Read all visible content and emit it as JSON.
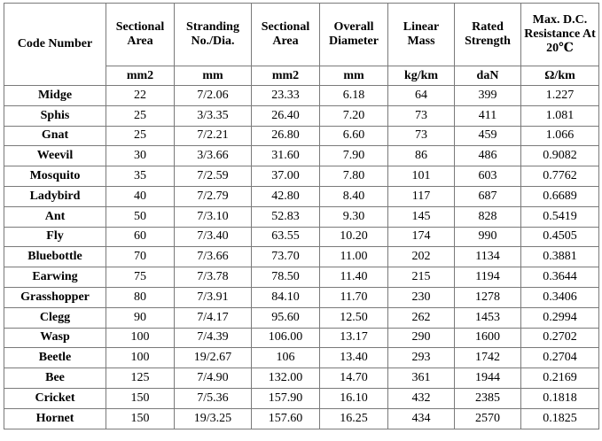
{
  "table": {
    "headers": [
      "Code Number",
      "Sectional Area",
      "Stranding No./Dia.",
      "Sectional Area",
      "Overall Diameter",
      "Linear Mass",
      "Rated Strength",
      "Max. D.C. Resistance At 20℃"
    ],
    "units": [
      "mm2",
      "mm",
      "mm2",
      "mm",
      "kg/km",
      "daN",
      "Ω/km"
    ],
    "rows": [
      [
        "Midge",
        "22",
        "7/2.06",
        "23.33",
        "6.18",
        "64",
        "399",
        "1.227"
      ],
      [
        "Sphis",
        "25",
        "3/3.35",
        "26.40",
        "7.20",
        "73",
        "411",
        "1.081"
      ],
      [
        "Gnat",
        "25",
        "7/2.21",
        "26.80",
        "6.60",
        "73",
        "459",
        "1.066"
      ],
      [
        "Weevil",
        "30",
        "3/3.66",
        "31.60",
        "7.90",
        "86",
        "486",
        "0.9082"
      ],
      [
        "Mosquito",
        "35",
        "7/2.59",
        "37.00",
        "7.80",
        "101",
        "603",
        "0.7762"
      ],
      [
        "Ladybird",
        "40",
        "7/2.79",
        "42.80",
        "8.40",
        "117",
        "687",
        "0.6689"
      ],
      [
        "Ant",
        "50",
        "7/3.10",
        "52.83",
        "9.30",
        "145",
        "828",
        "0.5419"
      ],
      [
        "Fly",
        "60",
        "7/3.40",
        "63.55",
        "10.20",
        "174",
        "990",
        "0.4505"
      ],
      [
        "Bluebottle",
        "70",
        "7/3.66",
        "73.70",
        "11.00",
        "202",
        "1134",
        "0.3881"
      ],
      [
        "Earwing",
        "75",
        "7/3.78",
        "78.50",
        "11.40",
        "215",
        "1194",
        "0.3644"
      ],
      [
        "Grasshopper",
        "80",
        "7/3.91",
        "84.10",
        "11.70",
        "230",
        "1278",
        "0.3406"
      ],
      [
        "Clegg",
        "90",
        "7/4.17",
        "95.60",
        "12.50",
        "262",
        "1453",
        "0.2994"
      ],
      [
        "Wasp",
        "100",
        "7/4.39",
        "106.00",
        "13.17",
        "290",
        "1600",
        "0.2702"
      ],
      [
        "Beetle",
        "100",
        "19/2.67",
        "106",
        "13.40",
        "293",
        "1742",
        "0.2704"
      ],
      [
        "Bee",
        "125",
        "7/4.90",
        "132.00",
        "14.70",
        "361",
        "1944",
        "0.2169"
      ],
      [
        "Cricket",
        "150",
        "7/5.36",
        "157.90",
        "16.10",
        "432",
        "2385",
        "0.1818"
      ],
      [
        "Hornet",
        "150",
        "19/3.25",
        "157.60",
        "16.25",
        "434",
        "2570",
        "0.1825"
      ]
    ]
  }
}
